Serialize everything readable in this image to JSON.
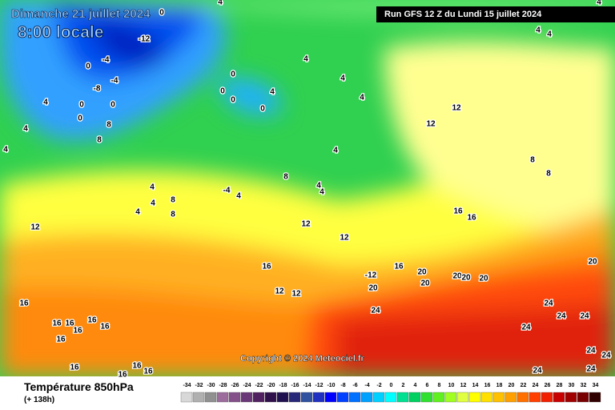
{
  "header": {
    "date": "Dimanche 21 juillet 2024",
    "time": "8:00 locale",
    "run": "Run GFS 12 Z du Lundi 15 juillet 2024"
  },
  "copyright": "Copyright © 2024 Meteociel.fr",
  "footer": {
    "title": "Température 850hPa",
    "lead": "(+ 138h)"
  },
  "legend": {
    "values": [
      -34,
      -32,
      -30,
      -28,
      -26,
      -24,
      -22,
      -20,
      -18,
      -16,
      -14,
      -12,
      -10,
      -8,
      -6,
      -4,
      -2,
      0,
      2,
      4,
      6,
      8,
      10,
      12,
      14,
      16,
      18,
      20,
      22,
      24,
      26,
      28,
      30,
      32,
      34
    ],
    "colors": [
      "#d8d8d8",
      "#b0b0b0",
      "#909090",
      "#9c6c9c",
      "#84508a",
      "#6a3878",
      "#502060",
      "#30104a",
      "#201050",
      "#282878",
      "#3050a0",
      "#2030c0",
      "#0000ff",
      "#0040ff",
      "#0070ff",
      "#00a0ff",
      "#00d0ff",
      "#00ffff",
      "#00e090",
      "#00d060",
      "#30e030",
      "#60f020",
      "#a0ff20",
      "#e0ff40",
      "#ffff00",
      "#ffe000",
      "#ffc000",
      "#ffa000",
      "#ff7000",
      "#ff4000",
      "#f02000",
      "#c80000",
      "#a00000",
      "#780000",
      "#300000"
    ]
  },
  "contour_labels": [
    0,
    4,
    4,
    -12,
    4,
    4,
    -4,
    0,
    -4,
    -8,
    0,
    0,
    0,
    8,
    8,
    0,
    0,
    0,
    0,
    4,
    4,
    4,
    4,
    4,
    4,
    4,
    4,
    12,
    12,
    8,
    8,
    4,
    4,
    4,
    8,
    8,
    -4,
    4,
    8,
    4,
    4,
    12,
    12,
    12,
    16,
    16,
    16,
    12,
    12,
    16,
    20,
    20,
    20,
    20,
    20,
    20,
    -12,
    16,
    16,
    16,
    16,
    16,
    16,
    16,
    24,
    24,
    24,
    24,
    24,
    24,
    24,
    24,
    24,
    16,
    16,
    16,
    16,
    20
  ]
}
